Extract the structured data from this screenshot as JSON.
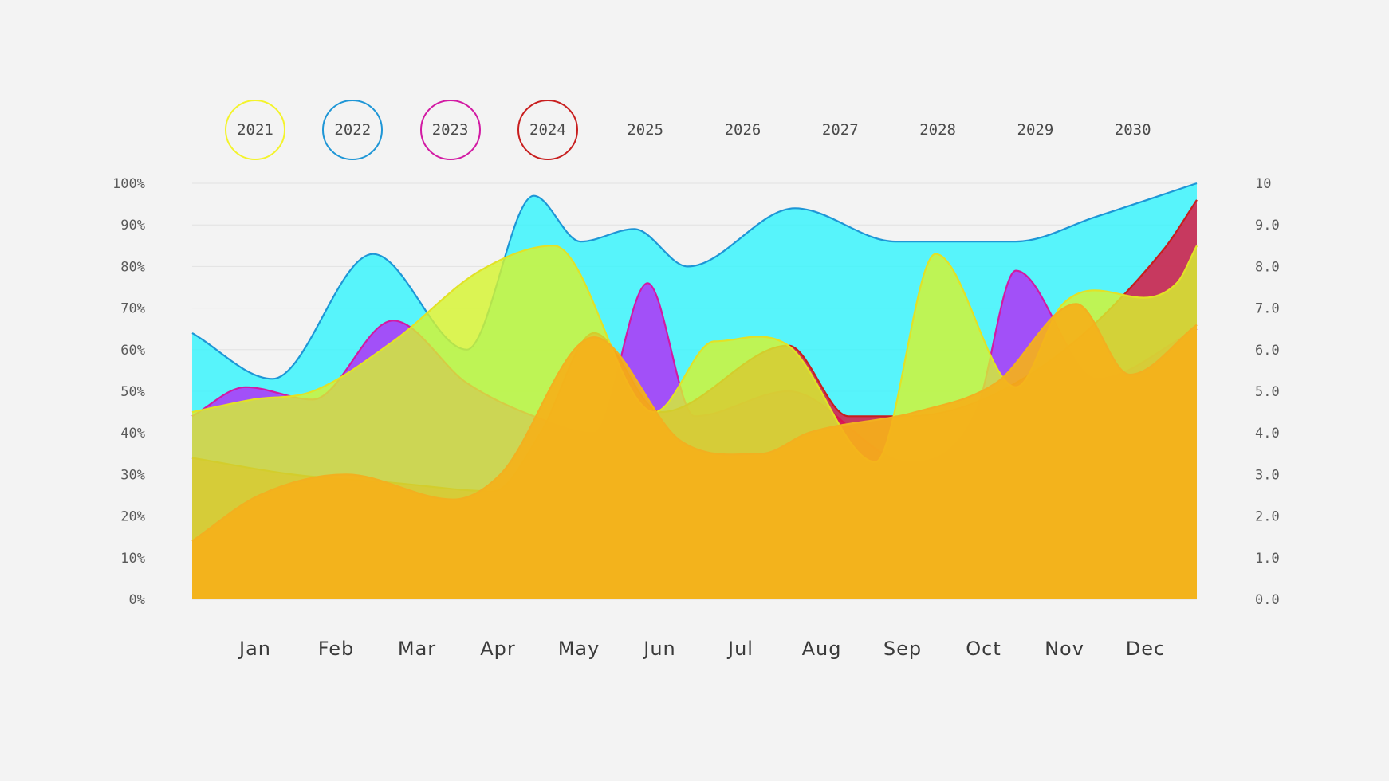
{
  "legend": {
    "items": [
      {
        "label": "2021",
        "color": "#f3f32a",
        "active": true
      },
      {
        "label": "2022",
        "color": "#1e96d6",
        "active": true
      },
      {
        "label": "2023",
        "color": "#d21aa3",
        "active": true
      },
      {
        "label": "2024",
        "color": "#c81e1e",
        "active": true
      },
      {
        "label": "2025",
        "color": "",
        "active": false
      },
      {
        "label": "2026",
        "color": "",
        "active": false
      },
      {
        "label": "2027",
        "color": "",
        "active": false
      },
      {
        "label": "2028",
        "color": "",
        "active": false
      },
      {
        "label": "2029",
        "color": "",
        "active": false
      },
      {
        "label": "2030",
        "color": "",
        "active": false
      }
    ]
  },
  "chart_data": {
    "type": "area",
    "title": "",
    "xlabel": "",
    "ylabel": "",
    "categories": [
      "Jan",
      "Feb",
      "Mar",
      "Apr",
      "May",
      "Jun",
      "Jul",
      "Aug",
      "Sep",
      "Oct",
      "Nov",
      "Dec"
    ],
    "y_left": {
      "ticks": [
        "0%",
        "10%",
        "20%",
        "30%",
        "40%",
        "50%",
        "60%",
        "70%",
        "80%",
        "90%",
        "100%"
      ],
      "ylim": [
        0,
        100
      ]
    },
    "y_right": {
      "ticks": [
        "0.0",
        "1.0",
        "2.0",
        "3.0",
        "4.0",
        "5.0",
        "6.0",
        "7.0",
        "8.0",
        "9.0",
        "10"
      ],
      "ylim": [
        0,
        10
      ]
    },
    "grid": true,
    "legend_position": "top",
    "series": [
      {
        "color": "#1e96d6",
        "fill": "#35f4fc",
        "x": [
          0,
          1.2,
          2.7,
          4.1,
          5.1,
          5.8,
          6.6,
          7.4,
          9.0,
          10.5,
          12.3,
          13.5,
          15.0
        ],
        "y": [
          64,
          53,
          83,
          60,
          97,
          86,
          89,
          80,
          94,
          86,
          86,
          92,
          100
        ]
      },
      {
        "color": "#d21aa3",
        "fill": "#b32cf7",
        "x": [
          0,
          0.8,
          1.8,
          3.0,
          4.1,
          5.1,
          6.0,
          6.8,
          7.5,
          8.9,
          10.7,
          11.7,
          12.3,
          13.5,
          15.0
        ],
        "y": [
          44,
          51,
          48,
          67,
          52,
          44,
          40,
          76,
          44,
          50,
          33,
          45,
          79,
          53,
          65
        ]
      },
      {
        "color": "#c81e1e",
        "fill": "#e0103c",
        "x": [
          0,
          1.5,
          3.0,
          4.5,
          5.2,
          6.0,
          7.0,
          8.9,
          9.8,
          10.7,
          12.6,
          14.5,
          15.0
        ],
        "y": [
          34,
          30,
          28,
          26,
          40,
          64,
          45,
          61,
          44,
          44,
          55,
          84,
          96
        ]
      },
      {
        "color": "#e2e226",
        "fill": "#d6f430",
        "x": [
          0,
          0.9,
          1.8,
          3.0,
          4.3,
          5.4,
          6.9,
          7.8,
          8.9,
          10.2,
          11.1,
          12.3,
          13.0,
          14.7,
          15.0
        ],
        "y": [
          45,
          48,
          50,
          62,
          79,
          85,
          45,
          62,
          61,
          33,
          83,
          51,
          71,
          76,
          85
        ]
      },
      {
        "color": "#f2b020",
        "fill": "#f5b11a",
        "x": [
          0,
          1.0,
          2.3,
          3.9,
          4.6,
          6.0,
          7.3,
          8.5,
          9.2,
          10.8,
          12.0,
          13.2,
          14.0,
          15.0
        ],
        "y": [
          14,
          25,
          30,
          24,
          30,
          63,
          38,
          35,
          40,
          45,
          52,
          71,
          54,
          66
        ]
      }
    ]
  }
}
